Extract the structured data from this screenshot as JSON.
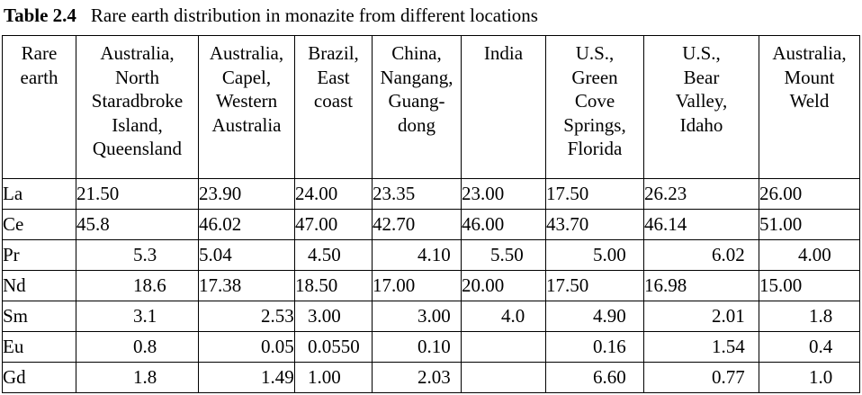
{
  "caption": {
    "number": "Table 2.4",
    "title": "Rare earth distribution in monazite from different locations"
  },
  "headers": [
    {
      "lines": [
        "Rare",
        "earth"
      ]
    },
    {
      "lines": [
        "Australia,",
        "North",
        "Staradbroke",
        "Island,",
        "Queensland"
      ]
    },
    {
      "lines": [
        "Australia,",
        "Capel,",
        "Western",
        "Australia"
      ]
    },
    {
      "lines": [
        "Brazil,",
        "East",
        "coast"
      ]
    },
    {
      "lines": [
        "China,",
        "Nangang,",
        "Guang-",
        "dong"
      ]
    },
    {
      "lines": [
        "India"
      ]
    },
    {
      "lines": [
        "U.S.,",
        "Green",
        "Cove",
        "Springs,",
        "Florida"
      ]
    },
    {
      "lines": [
        "U.S.,",
        "Bear",
        "Valley,",
        "Idaho"
      ]
    },
    {
      "lines": [
        "Australia,",
        "Mount",
        "Weld"
      ]
    }
  ],
  "rows": [
    {
      "cells": [
        "La",
        "21.50",
        "23.90",
        "24.00",
        "23.35",
        "23.00",
        "17.50",
        "26.23",
        "26.00"
      ]
    },
    {
      "cells": [
        "Ce",
        "45.8",
        "46.02",
        "47.00",
        "42.70",
        "46.00",
        "43.70",
        "46.14",
        "51.00"
      ]
    },
    {
      "cells": [
        "Pr",
        "5.3",
        "5.04",
        "4.50",
        "4.10",
        "5.50",
        "5.00",
        "6.02",
        "4.00"
      ]
    },
    {
      "cells": [
        "Nd",
        "18.6",
        "17.38",
        "18.50",
        "17.00",
        "20.00",
        "17.50",
        "16.98",
        "15.00"
      ]
    },
    {
      "cells": [
        "Sm",
        "3.1",
        "2.53",
        "3.00",
        "3.00",
        "4.0",
        "4.90",
        "2.01",
        "1.8"
      ]
    },
    {
      "cells": [
        "Eu",
        "0.8",
        "0.05",
        "0.0550",
        "0.10",
        "",
        "0.16",
        "1.54",
        "0.4"
      ]
    },
    {
      "cells": [
        "Gd",
        "1.8",
        "1.49",
        "1.00",
        "2.03",
        "",
        "6.60",
        "0.77",
        "1.0"
      ]
    }
  ]
}
